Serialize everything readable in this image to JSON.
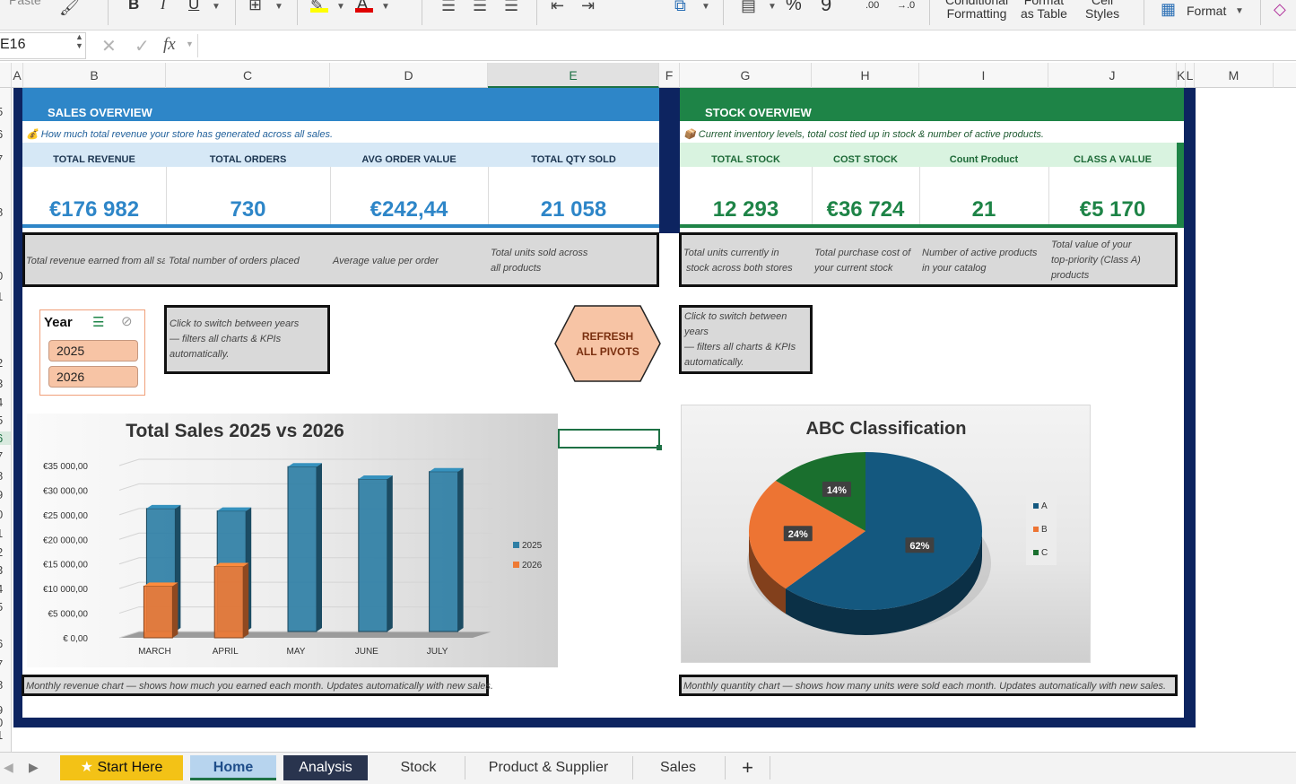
{
  "ribbon": {
    "paste_label": "Paste",
    "bold": "B",
    "italic": "I",
    "underline": "U",
    "conditional_formatting": [
      "Conditional",
      "Formatting"
    ],
    "format_as_table": [
      "Format",
      "as Table"
    ],
    "cell_styles": [
      "Cell",
      "Styles"
    ],
    "format_label": "Format",
    "percent": "%",
    "comma": "9",
    "inc_decimal": ".00",
    "dec_decimal": "→.0"
  },
  "formula_bar": {
    "name_box": "E16",
    "fx": "fx"
  },
  "columns": [
    "A",
    "B",
    "C",
    "D",
    "E",
    "F",
    "G",
    "H",
    "I",
    "J",
    "K",
    "L",
    "M"
  ],
  "rows": [
    "5",
    "6",
    "7",
    "8",
    "0",
    "1",
    "2",
    "3",
    "4",
    "5",
    "6",
    "7",
    "8",
    "9",
    "0",
    "1",
    "2",
    "3",
    "4",
    "5",
    "6",
    "7",
    "8",
    "9",
    "0",
    "1"
  ],
  "sales": {
    "title": "SALES OVERVIEW",
    "subtitle": "💰 How much total revenue your store has generated across all sales.",
    "kpis": [
      {
        "label": "TOTAL REVENUE",
        "value": "€176 982",
        "note": "Total revenue earned from all sale"
      },
      {
        "label": "TOTAL ORDERS",
        "value": "730",
        "note": "Total number of orders placed"
      },
      {
        "label": "AVG ORDER VALUE",
        "value": "€242,44",
        "note": "Average value per order"
      },
      {
        "label": "TOTAL QTY SOLD",
        "value": "21 058",
        "note_lines": [
          "Total units sold across",
          "all products"
        ]
      }
    ]
  },
  "stock": {
    "title": "STOCK OVERVIEW",
    "subtitle": "📦 Current inventory levels, total cost tied up in stock & number of active products.",
    "kpis": [
      {
        "label": "TOTAL STOCK",
        "value": "12 293",
        "note_lines": [
          "Total units currently in",
          "stock across both stores"
        ]
      },
      {
        "label": "COST STOCK",
        "value": "€36 724",
        "note_lines": [
          "Total purchase cost of",
          "your current stock"
        ]
      },
      {
        "label": "Count Product",
        "value": "21",
        "note_lines": [
          "Number of active products",
          "in your catalog"
        ]
      },
      {
        "label": "CLASS A VALUE",
        "value": "€5 170",
        "note_lines": [
          "Total value of your",
          "top-priority (Class A)",
          "products"
        ]
      }
    ]
  },
  "slicer": {
    "title": "Year",
    "items": [
      "2025",
      "2026"
    ]
  },
  "notes": {
    "year_left": [
      "Click to switch between years",
      "— filters all charts & KPIs",
      "automatically."
    ],
    "year_right": [
      "Click to switch between",
      "years",
      "— filters all charts & KPIs",
      "automatically."
    ],
    "bar_caption": "Monthly revenue chart — shows how much you earned each month. Updates automatically with new sales.",
    "pie_caption": "Monthly quantity chart — shows how many units were sold each month. Updates automatically with new sales."
  },
  "refresh_button": [
    "REFRESH",
    "ALL PIVOTS"
  ],
  "chart_data": [
    {
      "type": "bar",
      "title": "Total Sales 2025 vs 2026",
      "categories": [
        "MARCH",
        "APRIL",
        "MAY",
        "JUNE",
        "JULY"
      ],
      "series": [
        {
          "name": "2025",
          "color": "#2f7fa5",
          "values": [
            25000,
            24500,
            33500,
            31000,
            32500
          ]
        },
        {
          "name": "2026",
          "color": "#ee7a35",
          "values": [
            10500,
            14500,
            null,
            null,
            null
          ]
        }
      ],
      "ylim": [
        0,
        35000
      ],
      "yticks": [
        "€ 0,00",
        "€5 000,00",
        "€10 000,00",
        "€15 000,00",
        "€20 000,00",
        "€25 000,00",
        "€30 000,00",
        "€35 000,00"
      ],
      "legend": "right"
    },
    {
      "type": "pie",
      "title": "ABC Classification",
      "slices": [
        {
          "name": "A",
          "value": 62,
          "label": "62%",
          "color": "#14587f"
        },
        {
          "name": "B",
          "value": 24,
          "label": "24%",
          "color": "#ed7433"
        },
        {
          "name": "C",
          "value": 14,
          "label": "14%",
          "color": "#1a6f2e"
        }
      ],
      "legend": "right"
    }
  ],
  "tabs": [
    {
      "label": "Start Here",
      "icon": "star-icon"
    },
    {
      "label": "Home"
    },
    {
      "label": "Analysis"
    },
    {
      "label": "Stock"
    },
    {
      "label": "Product & Supplier"
    },
    {
      "label": "Sales"
    },
    {
      "label": "+"
    }
  ],
  "colors": {
    "sales_blue": "#2e86c8",
    "stock_green": "#1e8447",
    "navy": "#0d2460"
  }
}
